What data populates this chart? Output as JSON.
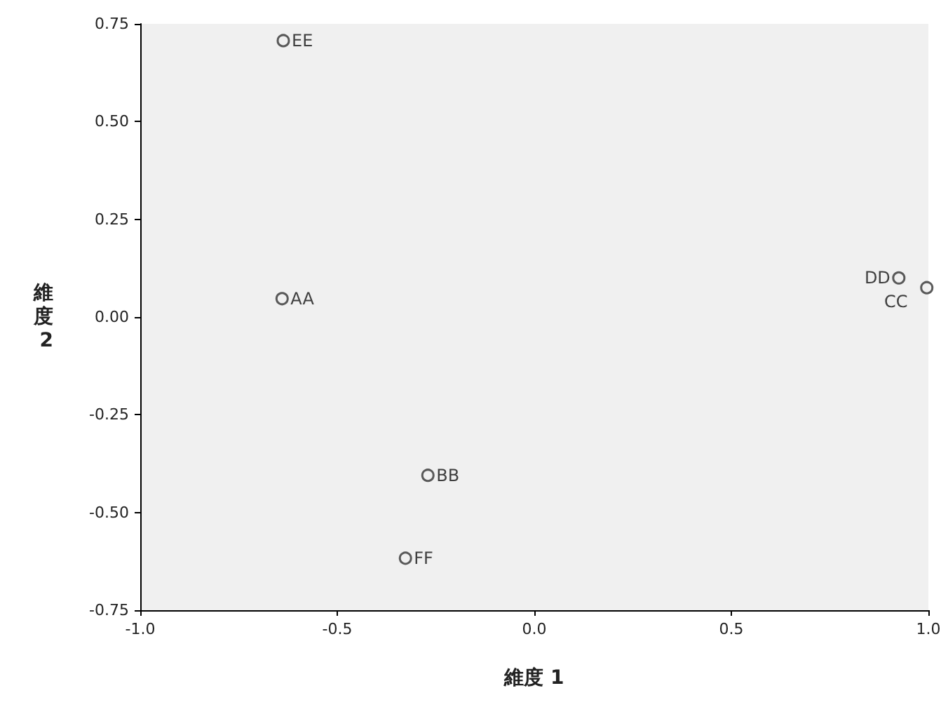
{
  "chart_data": {
    "type": "scatter",
    "xlabel": "維度 1",
    "ylabel": "維度 2",
    "x": [
      -0.64,
      -0.27,
      0.996,
      0.925,
      -0.637,
      -0.327
    ],
    "values": [
      0.047,
      -0.405,
      0.075,
      0.1,
      0.707,
      -0.617
    ],
    "color": "#333333",
    "marker": "circle",
    "grid": false,
    "xlim": [
      -1,
      1
    ],
    "ylim": [
      -0.75,
      0.75
    ],
    "xticks": [
      {
        "value": -1,
        "label": "-1.0"
      },
      {
        "value": -0.5,
        "label": "-0.5"
      },
      {
        "value": 0,
        "label": "0.0"
      },
      {
        "value": 0.5,
        "label": "0.5"
      },
      {
        "value": 1,
        "label": "1.0"
      }
    ],
    "yticks": [
      {
        "value": -0.75,
        "label": "-0.75"
      },
      {
        "value": -0.5,
        "label": "-0.50"
      },
      {
        "value": -0.25,
        "label": "-0.25"
      },
      {
        "value": 0,
        "label": "0.00"
      },
      {
        "value": 0.25,
        "label": "0.25"
      },
      {
        "value": 0.5,
        "label": "0.50"
      },
      {
        "value": 0.75,
        "label": "0.75"
      }
    ],
    "annotations": [
      {
        "text": "AA",
        "x": -0.64,
        "y": 0.047
      },
      {
        "text": "BB",
        "x": -0.27,
        "y": -0.405
      },
      {
        "text": "CC",
        "x": 0.996,
        "y": 0.075
      },
      {
        "text": "DD",
        "x": 0.925,
        "y": 0.1
      },
      {
        "text": "EE",
        "x": -0.637,
        "y": 0.707
      },
      {
        "text": "FF",
        "x": -0.327,
        "y": -0.617
      }
    ]
  }
}
